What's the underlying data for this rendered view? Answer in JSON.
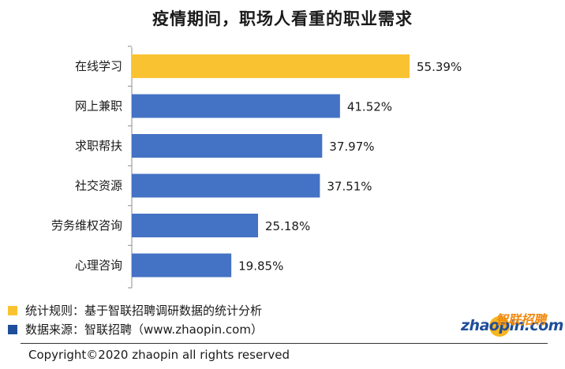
{
  "chart_data": {
    "type": "bar",
    "orientation": "horizontal",
    "title": "疫情期间，职场人看重的职业需求",
    "categories": [
      "在线学习",
      "网上兼职",
      "求职帮扶",
      "社交资源",
      "劳务维权咨询",
      "心理咨询"
    ],
    "values": [
      55.39,
      41.52,
      37.97,
      37.51,
      25.18,
      19.85
    ],
    "value_labels": [
      "55.39%",
      "41.52%",
      "37.97%",
      "37.51%",
      "25.18%",
      "19.85%"
    ],
    "highlight_index": 0,
    "colors": {
      "highlight": "#F9C231",
      "default": "#4472C4",
      "axis": "#8c8c8c"
    }
  },
  "legend": [
    {
      "label": "统计规则：基于智联招聘调研数据的统计分析",
      "color": "#F9C231"
    },
    {
      "label": "数据来源：智联招聘（www.zhaopin.com）",
      "color": "#1F4E9A"
    }
  ],
  "logo": {
    "text_latin": "zhaopin.com",
    "text_cn": "智联招聘"
  },
  "footer": {
    "copyright": "Copyright©2020 zhaopin all rights reserved"
  }
}
